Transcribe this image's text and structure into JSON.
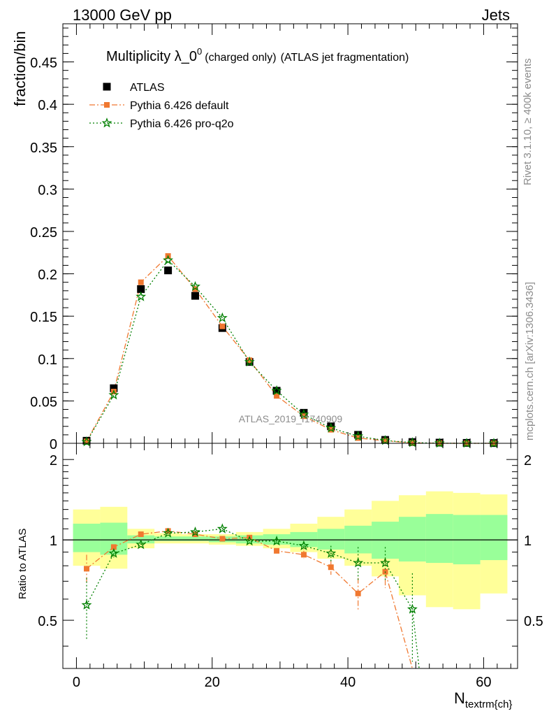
{
  "header": {
    "left": "13000 GeV pp",
    "right": "Jets"
  },
  "side_texts": {
    "rivet": "Rivet 3.1.10, ≥ 400k events",
    "mcplots": "mcplots.cern.ch [arXiv:1306.3436]"
  },
  "watermark": "ATLAS_2019_I1740909",
  "colors": {
    "atlas": "#000000",
    "pythia_default": "#f07830",
    "pythia_proq2o": "#007f00",
    "band_yellow": "#ffff99",
    "band_green": "#99ff99"
  },
  "chart_data": [
    {
      "type": "scatter",
      "panel": "main",
      "title": "Multiplicity λ_0",
      "title_sup": "0",
      "title_suffix_small": "(charged only)",
      "title_suffix": "(ATLAS jet fragmentation)",
      "ylabel": "fraction/bin",
      "xlim": [
        -2,
        65
      ],
      "ylim": [
        0,
        0.495
      ],
      "yticks": [
        0,
        0.05,
        0.1,
        0.15,
        0.2,
        0.25,
        0.3,
        0.35,
        0.4,
        0.45
      ],
      "ytick_labels": [
        "0",
        "0.05",
        "0.1",
        "0.15",
        "0.2",
        "0.25",
        "0.3",
        "0.35",
        "0.4",
        "0.45"
      ],
      "legend_position": "top-left",
      "series": [
        {
          "name": "ATLAS",
          "style": "square",
          "x": [
            1.5,
            5.5,
            9.5,
            13.5,
            17.5,
            21.5,
            25.5,
            29.5,
            33.5,
            37.5,
            41.5,
            45.5,
            49.5,
            53.5,
            57.5,
            61.5
          ],
          "y": [
            0.003,
            0.065,
            0.182,
            0.204,
            0.174,
            0.136,
            0.096,
            0.062,
            0.036,
            0.02,
            0.01,
            0.004,
            0.0015,
            0.0008,
            0.0005,
            0.0003
          ]
        },
        {
          "name": "Pythia 6.426 default",
          "style": "dashdot-square",
          "x": [
            1.5,
            5.5,
            9.5,
            13.5,
            17.5,
            21.5,
            25.5,
            29.5,
            33.5,
            37.5,
            41.5,
            45.5,
            49.5,
            53.5,
            57.5,
            61.5
          ],
          "y": [
            0.0023,
            0.061,
            0.19,
            0.221,
            0.182,
            0.138,
            0.098,
            0.056,
            0.032,
            0.016,
            0.0062,
            0.003,
            0.0005,
            0.0001,
            0.0,
            0.0
          ]
        },
        {
          "name": "Pythia 6.426 pro-q2o",
          "style": "dotted-star",
          "x": [
            1.5,
            5.5,
            9.5,
            13.5,
            17.5,
            21.5,
            25.5,
            29.5,
            33.5,
            37.5,
            41.5,
            45.5,
            49.5,
            53.5,
            57.5,
            61.5
          ],
          "y": [
            0.0017,
            0.057,
            0.173,
            0.216,
            0.185,
            0.148,
            0.096,
            0.062,
            0.034,
            0.018,
            0.0083,
            0.0033,
            0.0008,
            0.0001,
            0.0,
            0.0
          ]
        }
      ]
    },
    {
      "type": "scatter",
      "panel": "ratio",
      "ylabel": "Ratio to ATLAS",
      "xlabel": "N",
      "xlabel_sub": "textrm{ch}",
      "xlim": [
        -2,
        65
      ],
      "ylim": [
        0.33,
        2.3
      ],
      "log_y": true,
      "xticks": [
        0,
        20,
        40,
        60
      ],
      "xtick_labels": [
        "0",
        "20",
        "40",
        "60"
      ],
      "yticks": [
        0.5,
        1,
        2
      ],
      "ytick_labels": [
        "0.5",
        "1",
        "2"
      ],
      "bands": {
        "edges": [
          -0.5,
          3.5,
          7.5,
          11.5,
          15.5,
          19.5,
          23.5,
          27.5,
          31.5,
          35.5,
          39.5,
          43.5,
          47.5,
          51.5,
          55.5,
          59.5,
          63.5
        ],
        "yellow_lo": [
          0.8,
          0.78,
          0.93,
          0.97,
          0.97,
          0.96,
          0.95,
          0.93,
          0.9,
          0.85,
          0.8,
          0.73,
          0.62,
          0.56,
          0.55,
          0.63
        ],
        "yellow_hi": [
          1.3,
          1.33,
          1.1,
          1.06,
          1.05,
          1.05,
          1.07,
          1.1,
          1.15,
          1.22,
          1.3,
          1.4,
          1.47,
          1.52,
          1.5,
          1.48
        ],
        "green_lo": [
          0.9,
          0.88,
          0.97,
          0.99,
          0.99,
          0.98,
          0.97,
          0.96,
          0.94,
          0.92,
          0.89,
          0.85,
          0.83,
          0.82,
          0.81,
          0.84
        ],
        "green_hi": [
          1.15,
          1.16,
          1.04,
          1.03,
          1.03,
          1.03,
          1.04,
          1.05,
          1.07,
          1.1,
          1.13,
          1.17,
          1.22,
          1.25,
          1.24,
          1.24
        ]
      },
      "series": [
        {
          "name": "Pythia 6.426 default",
          "style": "dashdot-square",
          "x": [
            1.5,
            5.5,
            9.5,
            13.5,
            17.5,
            21.5,
            25.5,
            29.5,
            33.5,
            37.5,
            41.5,
            45.5,
            49.5
          ],
          "y": [
            0.78,
            0.94,
            1.05,
            1.08,
            1.05,
            1.01,
            1.02,
            0.91,
            0.88,
            0.79,
            0.63,
            0.76,
            0.33
          ],
          "err": [
            0.1,
            0.02,
            0.01,
            0.01,
            0.01,
            0.01,
            0.01,
            0.02,
            0.03,
            0.05,
            0.09,
            0.1,
            0.0
          ]
        },
        {
          "name": "Pythia 6.426 pro-q2o",
          "style": "dotted-star",
          "x": [
            1.5,
            5.5,
            9.5,
            13.5,
            17.5,
            21.5,
            25.5,
            29.5,
            33.5,
            37.5,
            41.5,
            45.5,
            49.5,
            50.5
          ],
          "y": [
            0.57,
            0.89,
            0.96,
            1.06,
            1.07,
            1.1,
            0.99,
            0.99,
            0.95,
            0.89,
            0.82,
            0.82,
            0.55,
            0.33
          ],
          "err": [
            0.15,
            0.03,
            0.01,
            0.01,
            0.01,
            0.01,
            0.01,
            0.02,
            0.03,
            0.06,
            0.12,
            0.12,
            0.2,
            0.0
          ]
        }
      ]
    }
  ]
}
